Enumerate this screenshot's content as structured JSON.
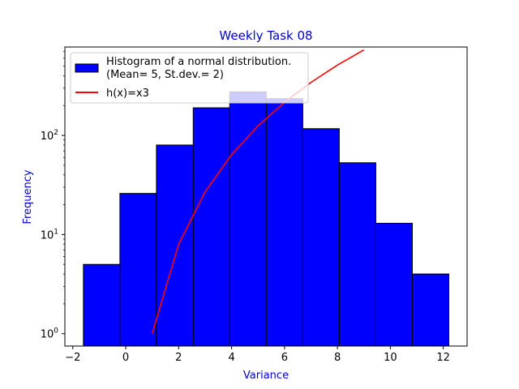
{
  "chart_data": {
    "type": "bar",
    "title": "Weekly Task 08",
    "xlabel": "Variance",
    "ylabel": "Frequency",
    "yscale": "log",
    "xlim": [
      -2.3,
      12.9
    ],
    "ylim": [
      0.75,
      780
    ],
    "x_ticks": [
      -2,
      0,
      2,
      4,
      6,
      8,
      10,
      12
    ],
    "y_ticks": [
      {
        "value": 1,
        "base": "10",
        "exp": "0"
      },
      {
        "value": 10,
        "base": "10",
        "exp": "1"
      },
      {
        "value": 100,
        "base": "10",
        "exp": "2"
      }
    ],
    "histogram": {
      "name_line1": "Histogram of a normal distribution.",
      "name_line2": "(Mean= 5, St.dev.= 2)",
      "bin_edges": [
        -1.6,
        -0.22,
        1.16,
        2.55,
        3.93,
        5.31,
        6.69,
        8.07,
        9.45,
        10.83,
        12.21
      ],
      "counts": [
        5,
        26,
        80,
        190,
        275,
        235,
        117,
        53,
        13,
        4
      ],
      "color": "#0000ff",
      "edgecolor": "#000000"
    },
    "line": {
      "name": "h(x)=x3",
      "color": "#ff0000",
      "x": [
        1,
        2,
        3,
        4,
        5,
        6,
        7,
        8,
        9
      ],
      "y": [
        1,
        8,
        27,
        64,
        125,
        216,
        343,
        512,
        729
      ]
    },
    "title_color": "#0000cc",
    "label_color": "#0000cc",
    "legend_position": "upper left"
  }
}
